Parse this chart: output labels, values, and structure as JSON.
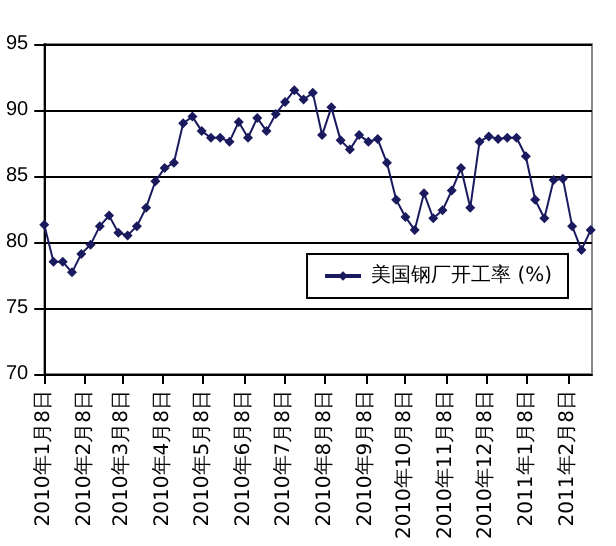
{
  "chart_data": {
    "type": "line",
    "x": [
      "2010-01-08",
      "2010-01-15",
      "2010-01-22",
      "2010-01-29",
      "2010-02-05",
      "2010-02-12",
      "2010-02-19",
      "2010-02-26",
      "2010-03-05",
      "2010-03-12",
      "2010-03-19",
      "2010-03-26",
      "2010-04-02",
      "2010-04-09",
      "2010-04-16",
      "2010-04-23",
      "2010-04-30",
      "2010-05-07",
      "2010-05-14",
      "2010-05-21",
      "2010-05-28",
      "2010-06-04",
      "2010-06-11",
      "2010-06-18",
      "2010-06-25",
      "2010-07-02",
      "2010-07-09",
      "2010-07-16",
      "2010-07-23",
      "2010-07-30",
      "2010-08-06",
      "2010-08-13",
      "2010-08-20",
      "2010-08-27",
      "2010-09-03",
      "2010-09-10",
      "2010-09-17",
      "2010-09-24",
      "2010-10-01",
      "2010-10-08",
      "2010-10-15",
      "2010-10-22",
      "2010-10-29",
      "2010-11-05",
      "2010-11-12",
      "2010-11-19",
      "2010-11-26",
      "2010-12-03",
      "2010-12-10",
      "2010-12-17",
      "2010-12-24",
      "2010-12-31",
      "2011-01-07",
      "2011-01-14",
      "2011-01-21",
      "2011-01-28",
      "2011-02-04",
      "2011-02-11",
      "2011-02-18",
      "2011-02-25"
    ],
    "series": [
      {
        "name": "美国钢厂开工率 (%)",
        "color": "#1a1a5e",
        "values": [
          81.3,
          78.5,
          78.5,
          77.7,
          79.1,
          79.8,
          81.2,
          82.0,
          80.7,
          80.5,
          81.2,
          82.6,
          84.6,
          85.6,
          86.0,
          89.0,
          89.5,
          88.4,
          87.9,
          87.9,
          87.6,
          89.1,
          87.9,
          89.4,
          88.4,
          89.7,
          90.6,
          91.5,
          90.8,
          91.3,
          88.1,
          90.2,
          87.7,
          87.0,
          88.1,
          87.6,
          87.8,
          86.0,
          83.2,
          81.9,
          80.9,
          83.7,
          81.8,
          82.4,
          83.9,
          85.6,
          82.6,
          87.6,
          88.0,
          87.8,
          87.9,
          87.9,
          86.5,
          83.2,
          81.8,
          84.7,
          84.8,
          81.2,
          79.4,
          80.9
        ]
      }
    ],
    "xlim": [
      "2010-01-08",
      "2011-02-26"
    ],
    "xticks": [
      {
        "value": "2010-01-08",
        "label": "2010年1月8日"
      },
      {
        "value": "2010-02-08",
        "label": "2010年2月8日"
      },
      {
        "value": "2010-03-08",
        "label": "2010年3月8日"
      },
      {
        "value": "2010-04-08",
        "label": "2010年4月8日"
      },
      {
        "value": "2010-05-08",
        "label": "2010年5月8日"
      },
      {
        "value": "2010-06-08",
        "label": "2010年6月8日"
      },
      {
        "value": "2010-07-08",
        "label": "2010年7月8日"
      },
      {
        "value": "2010-08-08",
        "label": "2010年8月8日"
      },
      {
        "value": "2010-09-08",
        "label": "2010年9月8日"
      },
      {
        "value": "2010-10-08",
        "label": "2010年10月8日"
      },
      {
        "value": "2010-11-08",
        "label": "2010年11月8日"
      },
      {
        "value": "2010-12-08",
        "label": "2010年12月8日"
      },
      {
        "value": "2011-01-08",
        "label": "2011年1月8日"
      },
      {
        "value": "2011-02-08",
        "label": "2011年2月8日"
      }
    ],
    "ylim": [
      70,
      95
    ],
    "yticks": [
      70,
      75,
      80,
      85,
      90,
      95
    ],
    "grid": "y",
    "legend": "right",
    "marker": "diamond",
    "line_style": "solid"
  }
}
